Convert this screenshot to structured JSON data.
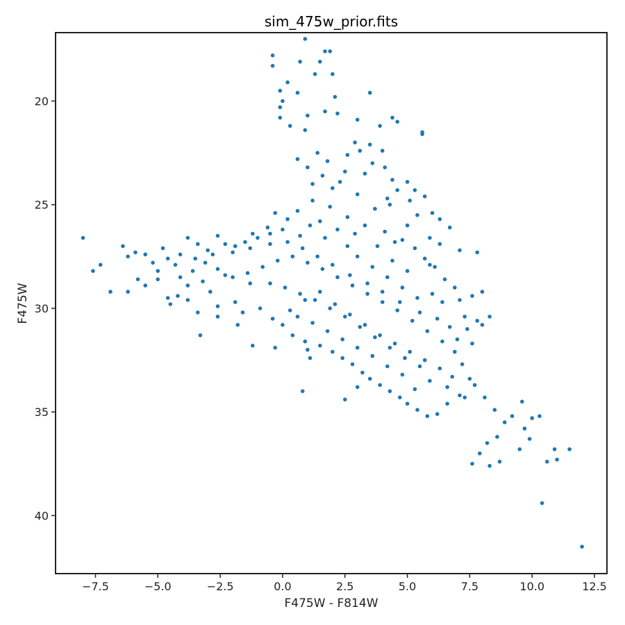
{
  "chart_data": {
    "type": "scatter",
    "title": "sim_475w_prior.fits",
    "xlabel": "F475W - F814W",
    "ylabel": "F475W",
    "xlim": [
      -9.1,
      13.0
    ],
    "ylim": [
      42.8,
      16.7
    ],
    "y_inverted": true,
    "x_ticks": [
      -7.5,
      -5.0,
      -2.5,
      0.0,
      2.5,
      5.0,
      7.5,
      10.0,
      12.5
    ],
    "x_tick_labels": [
      "−7.5",
      "−5.0",
      "−2.5",
      "0.0",
      "2.5",
      "5.0",
      "7.5",
      "10.0",
      "12.5"
    ],
    "y_ticks": [
      20,
      25,
      30,
      35,
      40
    ],
    "y_tick_labels": [
      "20",
      "25",
      "30",
      "35",
      "40"
    ],
    "grid": false,
    "legend": "none",
    "marker_color": "#1f77b4",
    "points": [
      [
        0.9,
        17.0
      ],
      [
        -0.4,
        17.8
      ],
      [
        1.7,
        17.6
      ],
      [
        1.9,
        17.6
      ],
      [
        -0.4,
        18.3
      ],
      [
        0.7,
        18.1
      ],
      [
        1.5,
        18.1
      ],
      [
        1.3,
        18.7
      ],
      [
        2.0,
        18.7
      ],
      [
        0.2,
        19.1
      ],
      [
        -0.1,
        19.5
      ],
      [
        0.0,
        20.0
      ],
      [
        0.6,
        19.6
      ],
      [
        2.1,
        19.8
      ],
      [
        3.5,
        19.6
      ],
      [
        -0.1,
        20.3
      ],
      [
        -0.1,
        20.8
      ],
      [
        0.3,
        21.2
      ],
      [
        0.9,
        21.4
      ],
      [
        1.0,
        20.7
      ],
      [
        1.7,
        20.5
      ],
      [
        2.2,
        20.6
      ],
      [
        3.0,
        20.9
      ],
      [
        3.9,
        21.2
      ],
      [
        4.4,
        20.8
      ],
      [
        4.6,
        21.0
      ],
      [
        5.6,
        21.6
      ],
      [
        5.6,
        21.5
      ],
      [
        2.9,
        22.0
      ],
      [
        3.5,
        22.1
      ],
      [
        4.0,
        22.4
      ],
      [
        0.6,
        22.8
      ],
      [
        1.0,
        23.2
      ],
      [
        2.5,
        23.4
      ],
      [
        3.3,
        23.5
      ],
      [
        4.4,
        23.8
      ],
      [
        5.0,
        23.9
      ],
      [
        5.3,
        24.3
      ],
      [
        5.1,
        24.8
      ],
      [
        5.7,
        24.6
      ],
      [
        6.0,
        25.4
      ],
      [
        6.3,
        25.7
      ],
      [
        6.7,
        26.1
      ],
      [
        5.9,
        26.6
      ],
      [
        6.3,
        26.9
      ],
      [
        7.1,
        27.2
      ],
      [
        7.8,
        27.3
      ],
      [
        3.0,
        24.5
      ],
      [
        4.3,
        25.0
      ],
      [
        -0.3,
        25.4
      ],
      [
        0.2,
        25.7
      ],
      [
        0.7,
        26.5
      ],
      [
        -0.6,
        26.1
      ],
      [
        -1.2,
        26.4
      ],
      [
        1.2,
        24.8
      ],
      [
        1.9,
        25.1
      ],
      [
        2.6,
        25.6
      ],
      [
        3.3,
        26.0
      ],
      [
        4.1,
        26.3
      ],
      [
        4.8,
        26.7
      ],
      [
        5.3,
        27.1
      ],
      [
        5.7,
        27.6
      ],
      [
        6.1,
        28.0
      ],
      [
        6.5,
        28.6
      ],
      [
        6.9,
        29.0
      ],
      [
        7.1,
        29.6
      ],
      [
        7.6,
        29.4
      ],
      [
        8.0,
        29.2
      ],
      [
        8.3,
        30.4
      ],
      [
        7.8,
        30.6
      ],
      [
        7.4,
        31.0
      ],
      [
        6.7,
        30.9
      ],
      [
        6.2,
        30.5
      ],
      [
        5.5,
        30.2
      ],
      [
        4.7,
        29.7
      ],
      [
        4.0,
        29.2
      ],
      [
        3.4,
        28.8
      ],
      [
        2.7,
        28.4
      ],
      [
        2.0,
        27.9
      ],
      [
        1.4,
        27.5
      ],
      [
        0.8,
        27.1
      ],
      [
        0.2,
        26.8
      ],
      [
        -0.5,
        26.9
      ],
      [
        -1.3,
        27.1
      ],
      [
        -2.0,
        27.3
      ],
      [
        -2.8,
        27.4
      ],
      [
        -3.5,
        27.6
      ],
      [
        -4.3,
        27.9
      ],
      [
        -5.0,
        28.2
      ],
      [
        -5.8,
        28.6
      ],
      [
        -6.4,
        27.0
      ],
      [
        -6.2,
        27.5
      ],
      [
        -5.9,
        27.3
      ],
      [
        -5.5,
        27.4
      ],
      [
        -5.2,
        27.8
      ],
      [
        -4.8,
        27.1
      ],
      [
        -4.6,
        27.6
      ],
      [
        -4.1,
        27.4
      ],
      [
        -3.8,
        26.6
      ],
      [
        -3.4,
        26.9
      ],
      [
        -3.0,
        27.2
      ],
      [
        -2.6,
        26.5
      ],
      [
        -2.3,
        26.9
      ],
      [
        -1.9,
        27.0
      ],
      [
        -1.5,
        26.8
      ],
      [
        -1.0,
        26.6
      ],
      [
        -0.5,
        26.4
      ],
      [
        0.0,
        26.2
      ],
      [
        -8.0,
        26.6
      ],
      [
        -7.6,
        28.2
      ],
      [
        -7.3,
        27.9
      ],
      [
        -6.9,
        29.2
      ],
      [
        -6.2,
        29.2
      ],
      [
        -5.5,
        28.9
      ],
      [
        -5.0,
        28.6
      ],
      [
        -4.6,
        29.5
      ],
      [
        -4.5,
        29.8
      ],
      [
        -4.2,
        29.4
      ],
      [
        -3.8,
        28.9
      ],
      [
        -3.8,
        29.6
      ],
      [
        -3.4,
        30.2
      ],
      [
        -3.2,
        28.7
      ],
      [
        -2.9,
        29.2
      ],
      [
        -2.6,
        29.9
      ],
      [
        -2.3,
        28.4
      ],
      [
        -1.9,
        29.7
      ],
      [
        -1.6,
        30.2
      ],
      [
        -1.3,
        28.8
      ],
      [
        -0.9,
        30.0
      ],
      [
        -0.4,
        30.5
      ],
      [
        0.0,
        30.8
      ],
      [
        0.4,
        31.3
      ],
      [
        0.9,
        31.6
      ],
      [
        1.0,
        32.0
      ],
      [
        1.5,
        31.8
      ],
      [
        2.0,
        32.1
      ],
      [
        2.4,
        32.4
      ],
      [
        2.8,
        32.7
      ],
      [
        3.2,
        33.1
      ],
      [
        3.5,
        33.4
      ],
      [
        3.9,
        33.7
      ],
      [
        4.3,
        34.0
      ],
      [
        4.7,
        34.3
      ],
      [
        5.0,
        34.6
      ],
      [
        5.4,
        34.9
      ],
      [
        5.8,
        35.2
      ],
      [
        6.2,
        35.1
      ],
      [
        6.6,
        34.6
      ],
      [
        7.1,
        34.2
      ],
      [
        7.7,
        33.7
      ],
      [
        8.1,
        34.3
      ],
      [
        8.5,
        34.9
      ],
      [
        8.9,
        35.5
      ],
      [
        9.2,
        35.2
      ],
      [
        9.6,
        34.5
      ],
      [
        10.0,
        35.3
      ],
      [
        10.3,
        35.2
      ],
      [
        9.7,
        35.8
      ],
      [
        8.6,
        36.2
      ],
      [
        8.2,
        36.5
      ],
      [
        7.6,
        37.5
      ],
      [
        8.3,
        37.6
      ],
      [
        8.7,
        37.4
      ],
      [
        7.9,
        37.0
      ],
      [
        9.9,
        36.3
      ],
      [
        9.5,
        36.8
      ],
      [
        10.6,
        37.4
      ],
      [
        10.9,
        36.8
      ],
      [
        11.0,
        37.3
      ],
      [
        11.5,
        36.8
      ],
      [
        10.4,
        39.4
      ],
      [
        12.0,
        41.5
      ],
      [
        -3.3,
        31.3
      ],
      [
        -1.2,
        31.8
      ],
      [
        -0.3,
        31.9
      ],
      [
        0.8,
        34.0
      ],
      [
        2.5,
        34.4
      ],
      [
        3.0,
        33.8
      ],
      [
        1.1,
        32.4
      ],
      [
        -1.8,
        30.8
      ],
      [
        -2.6,
        30.4
      ],
      [
        0.3,
        30.1
      ],
      [
        0.9,
        29.6
      ],
      [
        1.5,
        29.2
      ],
      [
        2.1,
        29.8
      ],
      [
        2.7,
        30.3
      ],
      [
        3.3,
        30.8
      ],
      [
        3.9,
        31.3
      ],
      [
        4.5,
        31.7
      ],
      [
        5.1,
        32.1
      ],
      [
        5.7,
        32.5
      ],
      [
        6.3,
        32.9
      ],
      [
        6.8,
        33.3
      ],
      [
        7.2,
        32.7
      ],
      [
        7.5,
        33.4
      ],
      [
        6.9,
        32.1
      ],
      [
        6.4,
        31.6
      ],
      [
        5.8,
        31.1
      ],
      [
        5.2,
        30.6
      ],
      [
        4.6,
        30.1
      ],
      [
        4.0,
        29.7
      ],
      [
        3.4,
        29.3
      ],
      [
        2.8,
        28.9
      ],
      [
        2.2,
        28.5
      ],
      [
        1.6,
        28.1
      ],
      [
        1.0,
        27.8
      ],
      [
        0.4,
        27.5
      ],
      [
        -0.2,
        27.7
      ],
      [
        -0.8,
        28.0
      ],
      [
        -1.4,
        28.3
      ],
      [
        -2.0,
        28.5
      ],
      [
        -2.6,
        28.1
      ],
      [
        -3.1,
        27.8
      ],
      [
        -3.6,
        28.2
      ],
      [
        -4.1,
        28.5
      ],
      [
        -0.5,
        28.8
      ],
      [
        0.1,
        29.0
      ],
      [
        0.7,
        29.3
      ],
      [
        1.3,
        29.6
      ],
      [
        1.9,
        30.0
      ],
      [
        2.5,
        30.4
      ],
      [
        3.1,
        30.9
      ],
      [
        3.7,
        31.4
      ],
      [
        4.3,
        31.9
      ],
      [
        4.9,
        32.4
      ],
      [
        5.5,
        32.8
      ],
      [
        1.4,
        22.5
      ],
      [
        1.6,
        23.6
      ],
      [
        1.2,
        24.0
      ],
      [
        2.0,
        24.2
      ],
      [
        2.3,
        23.9
      ],
      [
        1.8,
        22.9
      ],
      [
        2.6,
        22.6
      ],
      [
        3.1,
        22.4
      ],
      [
        3.6,
        23.0
      ],
      [
        4.1,
        23.2
      ],
      [
        4.6,
        24.3
      ],
      [
        4.2,
        24.7
      ],
      [
        3.7,
        25.2
      ],
      [
        5.4,
        25.5
      ],
      [
        5.0,
        26.0
      ],
      [
        4.5,
        26.8
      ],
      [
        5.9,
        27.9
      ],
      [
        6.4,
        29.7
      ],
      [
        6.0,
        29.3
      ],
      [
        7.3,
        30.4
      ],
      [
        8.0,
        30.8
      ],
      [
        7.6,
        31.7
      ],
      [
        7.0,
        31.5
      ],
      [
        6.6,
        33.8
      ],
      [
        7.3,
        34.3
      ],
      [
        5.9,
        33.5
      ],
      [
        5.3,
        33.9
      ],
      [
        4.8,
        33.2
      ],
      [
        4.2,
        32.8
      ],
      [
        3.6,
        32.3
      ],
      [
        3.0,
        31.9
      ],
      [
        2.4,
        31.5
      ],
      [
        1.8,
        31.1
      ],
      [
        1.2,
        30.7
      ],
      [
        0.6,
        30.4
      ],
      [
        2.2,
        26.2
      ],
      [
        2.6,
        27.0
      ],
      [
        3.0,
        27.5
      ],
      [
        3.6,
        28.0
      ],
      [
        4.2,
        28.5
      ],
      [
        4.8,
        29.0
      ],
      [
        5.4,
        29.5
      ],
      [
        1.7,
        26.6
      ],
      [
        1.1,
        26.0
      ],
      [
        0.6,
        25.3
      ],
      [
        1.5,
        25.8
      ],
      [
        2.9,
        26.4
      ],
      [
        3.8,
        27.0
      ],
      [
        4.4,
        27.7
      ],
      [
        5.0,
        28.2
      ]
    ]
  }
}
